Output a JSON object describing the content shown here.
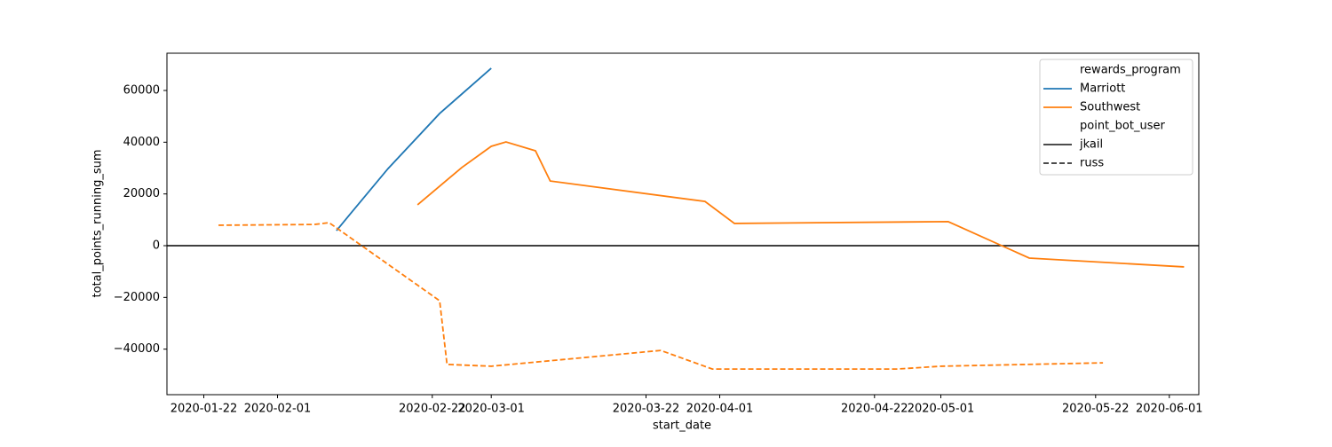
{
  "chart_data": {
    "type": "line",
    "xlabel": "start_date",
    "ylabel": "total_points_running_sum",
    "xlim": [
      "2020-01-17",
      "2020-06-05"
    ],
    "xticks": [
      "2020-01-22",
      "2020-02-01",
      "2020-02-22",
      "2020-03-01",
      "2020-03-22",
      "2020-04-01",
      "2020-04-22",
      "2020-05-01",
      "2020-05-22",
      "2020-06-01"
    ],
    "ylim": [
      -57600,
      74400
    ],
    "yticks": [
      {
        "value": -40000,
        "label": "−40000"
      },
      {
        "value": -20000,
        "label": "−20000"
      },
      0,
      20000,
      40000,
      60000
    ],
    "hline": 0,
    "legend": {
      "position": "upper right",
      "hue_title": "rewards_program",
      "style_title": "point_bot_user",
      "styles": [
        {
          "name": "jkail",
          "dash": "solid"
        },
        {
          "name": "russ",
          "dash": "dashed"
        }
      ]
    },
    "series": [
      {
        "name": "Marriott",
        "user": "jkail",
        "color": "#1f77b4",
        "x": [
          "2020-02-09",
          "2020-02-11",
          "2020-02-16",
          "2020-02-23",
          "2020-03-01"
        ],
        "values": [
          5800,
          12700,
          29800,
          51100,
          68600
        ]
      },
      {
        "name": "Southwest",
        "user": "jkail",
        "color": "#ff7f0e",
        "x": [
          "2020-02-20",
          "2020-02-26",
          "2020-03-01",
          "2020-03-03",
          "2020-03-07",
          "2020-03-09",
          "2020-03-30",
          "2020-04-03",
          "2020-05-02",
          "2020-05-13",
          "2020-06-03"
        ],
        "values": [
          15800,
          30200,
          38400,
          40100,
          36700,
          25000,
          17100,
          8600,
          9300,
          -4800,
          -8200
        ]
      },
      {
        "name": "Southwest",
        "user": "russ",
        "color": "#ff7f0e",
        "x": [
          "2020-01-24",
          "2020-02-06",
          "2020-02-08",
          "2020-02-23",
          "2020-02-24",
          "2020-03-01",
          "2020-03-24",
          "2020-03-31",
          "2020-04-25",
          "2020-05-01",
          "2020-05-23"
        ],
        "values": [
          7900,
          8200,
          8900,
          -21300,
          -45900,
          -46600,
          -40500,
          -47700,
          -47700,
          -46600,
          -45300
        ]
      }
    ]
  }
}
